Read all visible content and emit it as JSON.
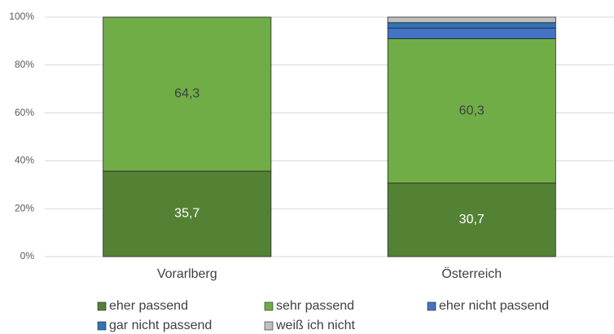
{
  "chart_data": {
    "type": "stacked_bar",
    "categories": [
      "Vorarlberg",
      "Österreich"
    ],
    "series": [
      {
        "name": "eher passend",
        "color": "#548235",
        "values": [
          35.7,
          30.7
        ],
        "value_labels": [
          "35,7",
          "30,7"
        ]
      },
      {
        "name": "sehr passend",
        "color": "#70ad47",
        "values": [
          64.3,
          60.3
        ],
        "value_labels": [
          "64,3",
          "60,3"
        ]
      },
      {
        "name": "eher nicht passend",
        "color": "#4472c4",
        "values": [
          0,
          4.4
        ],
        "value_labels": [
          null,
          null
        ]
      },
      {
        "name": "gar nicht passend",
        "color": "#2e75b6",
        "values": [
          0,
          2.3
        ],
        "value_labels": [
          null,
          null
        ]
      },
      {
        "name": "weiß ich nicht",
        "color": "#bfbfbf",
        "values": [
          0,
          2.3
        ],
        "value_labels": [
          null,
          null
        ]
      }
    ],
    "ylim": [
      0,
      100
    ],
    "yticks": [
      {
        "value": 0,
        "label": "0%"
      },
      {
        "value": 20,
        "label": "20%"
      },
      {
        "value": 40,
        "label": "40%"
      },
      {
        "value": 60,
        "label": "60%"
      },
      {
        "value": 80,
        "label": "80%"
      },
      {
        "value": 100,
        "label": "100%"
      }
    ],
    "grid": true,
    "legend": "bottom"
  }
}
